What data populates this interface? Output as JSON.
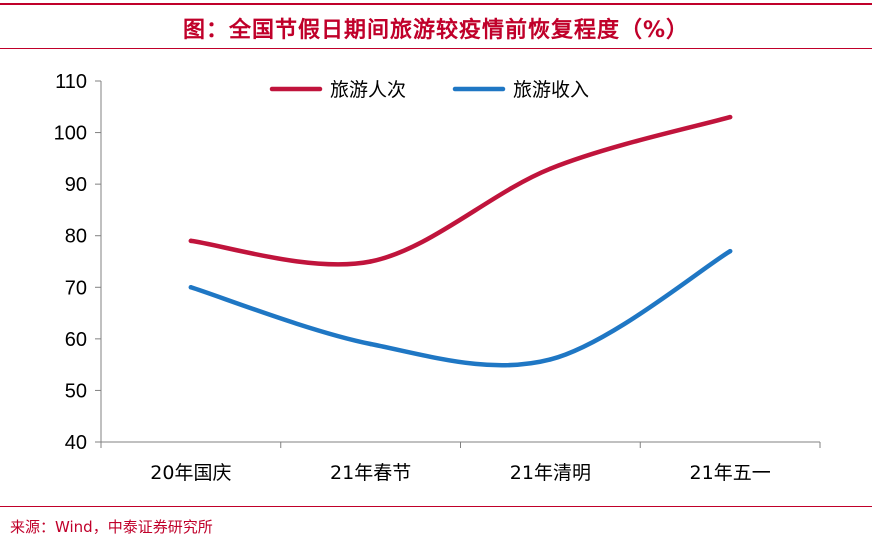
{
  "title": "图：全国节假日期间旅游较疫情前恢复程度（%）",
  "source": "来源：Wind，中泰证券研究所",
  "colors": {
    "accent": "#c0002a",
    "series_red": "#c0143c",
    "series_blue": "#1f77c4",
    "axis": "#808080",
    "text": "#000000"
  },
  "chart_data": {
    "type": "line",
    "categories": [
      "20年国庆",
      "21年春节",
      "21年清明",
      "21年五一"
    ],
    "series": [
      {
        "name": "旅游人次",
        "values": [
          79,
          75,
          93,
          103
        ],
        "color": "#c0143c"
      },
      {
        "name": "旅游收入",
        "values": [
          70,
          59,
          56,
          77
        ],
        "color": "#1f77c4"
      }
    ],
    "ylim": [
      40,
      110
    ],
    "yticks": [
      40,
      50,
      60,
      70,
      80,
      90,
      100,
      110
    ],
    "xlabel": "",
    "ylabel": "",
    "grid": false,
    "legend": "top",
    "smooth": true
  }
}
